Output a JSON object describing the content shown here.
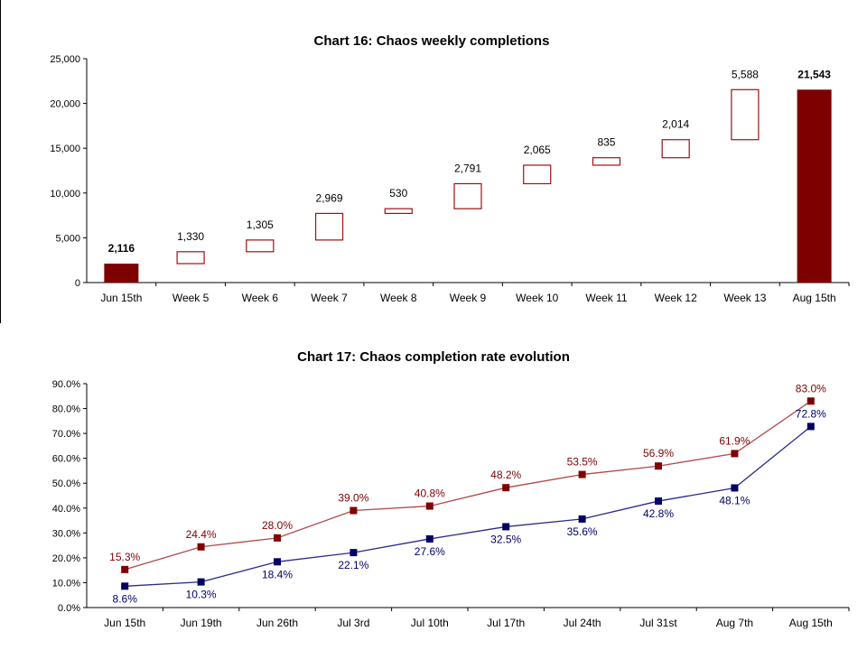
{
  "chart_data": [
    {
      "type": "bar",
      "subtype": "waterfall",
      "title": "Chart 16: Chaos weekly completions",
      "xlabel": "",
      "ylabel": "",
      "ylim": [
        0,
        25000
      ],
      "yticks": [
        "0",
        "5,000",
        "10,000",
        "15,000",
        "20,000",
        "25,000"
      ],
      "grid": false,
      "categories": [
        "Jun 15th",
        "Week 5",
        "Week 6",
        "Week 7",
        "Week 8",
        "Week 9",
        "Week 10",
        "Week 11",
        "Week 12",
        "Week 13",
        "Aug 15th"
      ],
      "values": [
        2116,
        1330,
        1305,
        2969,
        530,
        2791,
        2065,
        835,
        2014,
        5588,
        21543
      ],
      "value_labels": [
        "2,116",
        "1,330",
        "1,305",
        "2,969",
        "530",
        "2,791",
        "2,065",
        "835",
        "2,014",
        "5,588",
        "21,543"
      ],
      "bar_kinds": [
        "total",
        "increment",
        "increment",
        "increment",
        "increment",
        "increment",
        "increment",
        "increment",
        "increment",
        "increment",
        "total"
      ],
      "colors": {
        "total": "#7f0000",
        "increment_stroke": "#a01010"
      }
    },
    {
      "type": "line",
      "title": "Chart 17: Chaos completion rate evolution",
      "xlabel": "",
      "ylabel": "",
      "ylim": [
        0,
        90
      ],
      "yticks": [
        "0.0%",
        "10.0%",
        "20.0%",
        "30.0%",
        "40.0%",
        "50.0%",
        "60.0%",
        "70.0%",
        "80.0%",
        "90.0%"
      ],
      "grid": false,
      "categories": [
        "Jun 15th",
        "Jun 19th",
        "Jun 26th",
        "Jul 3rd",
        "Jul 10th",
        "Jul 17th",
        "Jul 24th",
        "Jul 31st",
        "Aug 7th",
        "Aug 15th"
      ],
      "series": [
        {
          "values": [
            15.3,
            24.4,
            28.0,
            39.0,
            40.8,
            48.2,
            53.5,
            56.9,
            61.9,
            83.0
          ],
          "labels": [
            "15.3%",
            "24.4%",
            "28.0%",
            "39.0%",
            "40.8%",
            "48.2%",
            "53.5%",
            "56.9%",
            "61.9%",
            "83.0%"
          ],
          "color": "#7f0000",
          "line_color": "#b04a4a"
        },
        {
          "values": [
            8.6,
            10.3,
            18.4,
            22.1,
            27.6,
            32.5,
            35.6,
            42.8,
            48.1,
            72.8
          ],
          "labels": [
            "8.6%",
            "10.3%",
            "18.4%",
            "22.1%",
            "27.6%",
            "32.5%",
            "35.6%",
            "42.8%",
            "48.1%",
            "72.8%"
          ],
          "color": "#000066",
          "line_color": "#2a2a8a"
        }
      ]
    }
  ]
}
